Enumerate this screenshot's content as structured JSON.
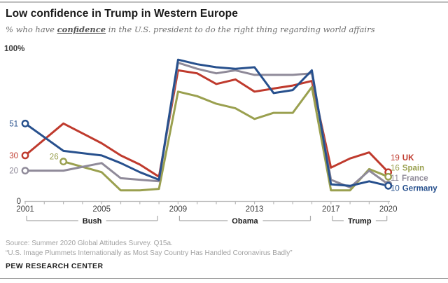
{
  "header": {
    "title": "Low confidence in Trump in Western Europe",
    "subtitle_prefix": "% who have ",
    "subtitle_emphasis": "confidence",
    "subtitle_suffix": " in the U.S. president to do the right thing regarding world affairs"
  },
  "chart_data": {
    "type": "line",
    "title": "Low confidence in Trump in Western Europe",
    "xlabel": "",
    "ylabel": "% who have confidence in the U.S. president",
    "ylim": [
      0,
      100
    ],
    "x_range": [
      2001,
      2020
    ],
    "x_tick_years": [
      2001,
      2005,
      2009,
      2013,
      2017,
      2020
    ],
    "y_top_label": "100%",
    "y_bottom_label": "0",
    "grid": false,
    "legend_position": "right",
    "axis_color": "#b9b9b9",
    "tick_label_color": "#3f3f3f",
    "era_bracket_color": "#a9a9a9",
    "era_label_color": "#1a1a1a",
    "eras": [
      {
        "label": "Bush",
        "start": 2001,
        "end": 2008
      },
      {
        "label": "Obama",
        "start": 2009,
        "end": 2016
      },
      {
        "label": "Trump",
        "start": 2017,
        "end": 2020
      }
    ],
    "series": [
      {
        "name": "UK",
        "color": "#bf3a2d",
        "start_label": "30",
        "end_label": "19",
        "points": [
          [
            2001,
            30
          ],
          [
            2003,
            51
          ],
          [
            2005,
            38
          ],
          [
            2006,
            30
          ],
          [
            2007,
            24
          ],
          [
            2008,
            16
          ],
          [
            2009,
            86
          ],
          [
            2010,
            84
          ],
          [
            2011,
            77
          ],
          [
            2012,
            80
          ],
          [
            2013,
            72
          ],
          [
            2014,
            74
          ],
          [
            2015,
            76
          ],
          [
            2016,
            79
          ],
          [
            2017,
            22
          ],
          [
            2018,
            28
          ],
          [
            2019,
            32
          ],
          [
            2020,
            19
          ]
        ]
      },
      {
        "name": "Spain",
        "color": "#9aa04f",
        "start_label": "26",
        "end_label": "16",
        "points": [
          [
            2003,
            26
          ],
          [
            2005,
            19
          ],
          [
            2006,
            7
          ],
          [
            2007,
            7
          ],
          [
            2008,
            8
          ],
          [
            2009,
            72
          ],
          [
            2010,
            69
          ],
          [
            2011,
            64
          ],
          [
            2012,
            61
          ],
          [
            2013,
            54
          ],
          [
            2014,
            58
          ],
          [
            2015,
            58
          ],
          [
            2016,
            75
          ],
          [
            2017,
            7
          ],
          [
            2018,
            7
          ],
          [
            2019,
            21
          ],
          [
            2020,
            16
          ]
        ]
      },
      {
        "name": "France",
        "color": "#8f8a99",
        "start_label": "20",
        "end_label": "11",
        "points": [
          [
            2001,
            20
          ],
          [
            2003,
            20
          ],
          [
            2005,
            25
          ],
          [
            2006,
            15
          ],
          [
            2007,
            14
          ],
          [
            2008,
            13
          ],
          [
            2009,
            91
          ],
          [
            2010,
            87
          ],
          [
            2011,
            84
          ],
          [
            2012,
            86
          ],
          [
            2013,
            83
          ],
          [
            2014,
            83
          ],
          [
            2015,
            83
          ],
          [
            2016,
            84
          ],
          [
            2017,
            14
          ],
          [
            2018,
            9
          ],
          [
            2019,
            20
          ],
          [
            2020,
            11
          ]
        ]
      },
      {
        "name": "Germany",
        "color": "#27508d",
        "start_label": "51",
        "end_label": "10",
        "points": [
          [
            2001,
            51
          ],
          [
            2003,
            33
          ],
          [
            2005,
            30
          ],
          [
            2006,
            25
          ],
          [
            2007,
            19
          ],
          [
            2008,
            14
          ],
          [
            2009,
            93
          ],
          [
            2010,
            90
          ],
          [
            2011,
            88
          ],
          [
            2012,
            87
          ],
          [
            2013,
            88
          ],
          [
            2014,
            71
          ],
          [
            2015,
            73
          ],
          [
            2016,
            86
          ],
          [
            2017,
            11
          ],
          [
            2018,
            10
          ],
          [
            2019,
            13
          ],
          [
            2020,
            10
          ]
        ]
      }
    ]
  },
  "footer": {
    "source_line1": "Source: Summer 2020 Global Attitudes Survey. Q15a.",
    "source_line2": "“U.S. Image Plummets Internationally as Most Say Country Has Handled Coronavirus Badly”",
    "brand": "PEW RESEARCH CENTER"
  }
}
